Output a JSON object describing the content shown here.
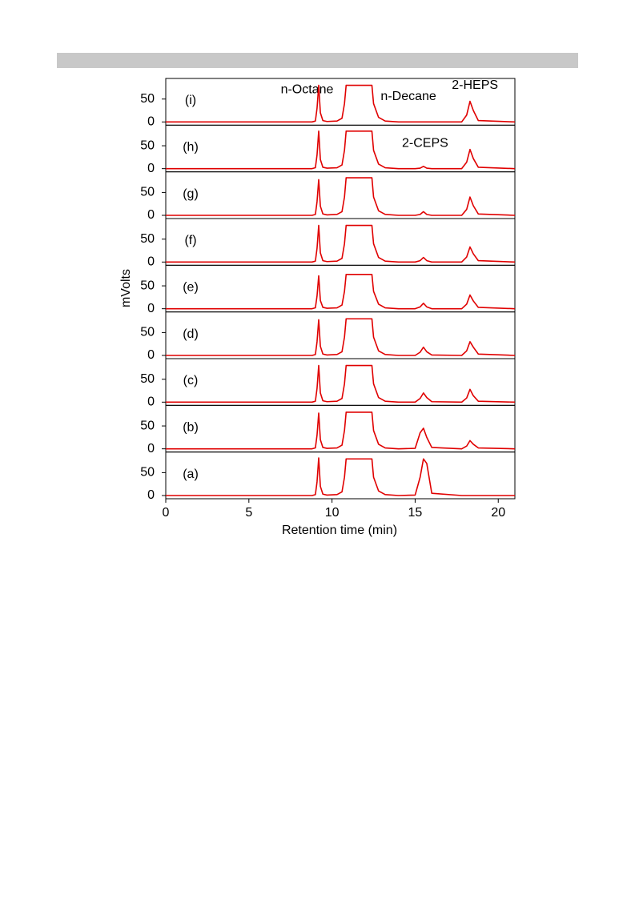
{
  "ylabel": "mVolts",
  "chart_data": [
    {
      "type": "line",
      "label": "(i)",
      "annotations": [
        "n-Octane",
        "n-Decane",
        "2-HEPS"
      ],
      "xlim": [
        0,
        21
      ],
      "ylim": [
        -7,
        95
      ],
      "yticks": [
        0,
        50
      ],
      "series": [
        {
          "color": "#e00000",
          "x": [
            0,
            8.8,
            9.0,
            9.1,
            9.2,
            9.3,
            9.45,
            9.7,
            10.3,
            10.6,
            10.75,
            10.85,
            12.4,
            12.5,
            12.8,
            13.2,
            14.0,
            15.0,
            15.3,
            15.5,
            15.7,
            16.0,
            17.8,
            18.1,
            18.3,
            18.5,
            18.8,
            21
          ],
          "values": [
            0,
            0,
            2,
            30,
            80,
            20,
            3,
            1,
            2,
            8,
            40,
            80,
            80,
            40,
            10,
            2,
            0,
            0,
            0,
            0,
            0,
            0,
            0,
            15,
            45,
            25,
            3,
            0
          ]
        }
      ]
    },
    {
      "type": "line",
      "label": "(h)",
      "annotations": [
        "2-CEPS"
      ],
      "xlim": [
        0,
        21
      ],
      "ylim": [
        -7,
        95
      ],
      "yticks": [
        0,
        50
      ],
      "series": [
        {
          "color": "#e00000",
          "x": [
            0,
            8.8,
            9.0,
            9.1,
            9.2,
            9.3,
            9.45,
            9.7,
            10.3,
            10.6,
            10.75,
            10.85,
            12.4,
            12.5,
            12.8,
            13.2,
            14.0,
            15.0,
            15.3,
            15.5,
            15.7,
            16.0,
            17.8,
            18.1,
            18.3,
            18.5,
            18.8,
            21
          ],
          "values": [
            0,
            0,
            2,
            30,
            82,
            20,
            3,
            1,
            2,
            8,
            40,
            82,
            82,
            40,
            10,
            2,
            0,
            0,
            1,
            5,
            1,
            0,
            0,
            14,
            42,
            22,
            3,
            0
          ]
        }
      ]
    },
    {
      "type": "line",
      "label": "(g)",
      "xlim": [
        0,
        21
      ],
      "ylim": [
        -7,
        95
      ],
      "yticks": [
        0,
        50
      ],
      "series": [
        {
          "color": "#e00000",
          "x": [
            0,
            8.8,
            9.0,
            9.1,
            9.2,
            9.3,
            9.45,
            9.7,
            10.3,
            10.6,
            10.75,
            10.85,
            12.4,
            12.5,
            12.8,
            13.2,
            14.0,
            15.0,
            15.3,
            15.5,
            15.7,
            16.0,
            17.8,
            18.1,
            18.3,
            18.5,
            18.8,
            21
          ],
          "values": [
            0,
            0,
            2,
            30,
            78,
            20,
            3,
            1,
            2,
            8,
            40,
            82,
            82,
            40,
            10,
            2,
            0,
            0,
            2,
            8,
            2,
            0,
            0,
            13,
            40,
            21,
            3,
            0
          ]
        }
      ]
    },
    {
      "type": "line",
      "label": "(f)",
      "xlim": [
        0,
        21
      ],
      "ylim": [
        -7,
        95
      ],
      "yticks": [
        0,
        50
      ],
      "series": [
        {
          "color": "#e00000",
          "x": [
            0,
            8.8,
            9.0,
            9.1,
            9.2,
            9.3,
            9.45,
            9.7,
            10.3,
            10.6,
            10.75,
            10.85,
            12.4,
            12.5,
            12.8,
            13.2,
            14.0,
            15.0,
            15.3,
            15.5,
            15.7,
            16.0,
            17.8,
            18.1,
            18.3,
            18.5,
            18.8,
            21
          ],
          "values": [
            0,
            0,
            2,
            30,
            80,
            20,
            3,
            1,
            2,
            8,
            40,
            80,
            80,
            40,
            10,
            2,
            0,
            0,
            3,
            10,
            3,
            0,
            0,
            11,
            33,
            18,
            3,
            0
          ]
        }
      ]
    },
    {
      "type": "line",
      "label": "(e)",
      "xlim": [
        0,
        21
      ],
      "ylim": [
        -7,
        95
      ],
      "yticks": [
        0,
        50
      ],
      "series": [
        {
          "color": "#e00000",
          "x": [
            0,
            8.8,
            9.0,
            9.1,
            9.2,
            9.3,
            9.45,
            9.7,
            10.3,
            10.6,
            10.75,
            10.85,
            12.4,
            12.5,
            12.8,
            13.2,
            14.0,
            15.0,
            15.3,
            15.5,
            15.7,
            16.0,
            17.8,
            18.1,
            18.3,
            18.5,
            18.8,
            21
          ],
          "values": [
            0,
            0,
            2,
            28,
            72,
            18,
            3,
            1,
            2,
            8,
            38,
            75,
            75,
            38,
            10,
            2,
            0,
            0,
            4,
            12,
            4,
            0,
            0,
            10,
            30,
            17,
            3,
            0
          ]
        }
      ]
    },
    {
      "type": "line",
      "label": "(d)",
      "xlim": [
        0,
        21
      ],
      "ylim": [
        -7,
        95
      ],
      "yticks": [
        0,
        50
      ],
      "series": [
        {
          "color": "#e00000",
          "x": [
            0,
            8.8,
            9.0,
            9.1,
            9.2,
            9.3,
            9.45,
            9.7,
            10.3,
            10.6,
            10.75,
            10.85,
            12.4,
            12.5,
            12.8,
            13.2,
            14.0,
            15.0,
            15.3,
            15.5,
            15.7,
            16.0,
            17.8,
            18.1,
            18.3,
            18.5,
            18.8,
            21
          ],
          "values": [
            0,
            0,
            2,
            30,
            78,
            20,
            3,
            1,
            2,
            8,
            40,
            80,
            80,
            40,
            10,
            2,
            0,
            0,
            7,
            18,
            8,
            1,
            0,
            10,
            30,
            18,
            3,
            0
          ]
        }
      ]
    },
    {
      "type": "line",
      "label": "(c)",
      "xlim": [
        0,
        21
      ],
      "ylim": [
        -7,
        95
      ],
      "yticks": [
        0,
        50
      ],
      "series": [
        {
          "color": "#e00000",
          "x": [
            0,
            8.8,
            9.0,
            9.1,
            9.2,
            9.3,
            9.45,
            9.7,
            10.3,
            10.6,
            10.75,
            10.85,
            12.4,
            12.5,
            12.8,
            13.2,
            14.0,
            15.0,
            15.3,
            15.5,
            15.7,
            16.0,
            17.8,
            18.1,
            18.3,
            18.5,
            18.8,
            21
          ],
          "values": [
            0,
            0,
            2,
            30,
            80,
            20,
            3,
            1,
            2,
            8,
            40,
            80,
            80,
            40,
            10,
            2,
            0,
            0,
            8,
            20,
            10,
            1,
            0,
            9,
            28,
            14,
            2,
            0
          ]
        }
      ]
    },
    {
      "type": "line",
      "label": "(b)",
      "xlim": [
        0,
        21
      ],
      "ylim": [
        -7,
        95
      ],
      "yticks": [
        0,
        50
      ],
      "series": [
        {
          "color": "#e00000",
          "x": [
            0,
            8.8,
            9.0,
            9.1,
            9.2,
            9.3,
            9.45,
            9.7,
            10.3,
            10.6,
            10.75,
            10.85,
            12.4,
            12.5,
            12.8,
            13.2,
            14.0,
            15.0,
            15.3,
            15.5,
            15.7,
            16.0,
            17.8,
            18.1,
            18.3,
            18.5,
            18.8,
            21
          ],
          "values": [
            0,
            0,
            2,
            30,
            78,
            20,
            3,
            1,
            2,
            8,
            40,
            80,
            80,
            40,
            10,
            2,
            0,
            1,
            35,
            45,
            25,
            3,
            0,
            6,
            18,
            10,
            2,
            0
          ]
        }
      ]
    },
    {
      "type": "line",
      "label": "(a)",
      "xlabel": "Retention time (min)",
      "xlim": [
        0,
        21
      ],
      "xticks": [
        0,
        5,
        10,
        15,
        20
      ],
      "ylim": [
        -7,
        95
      ],
      "yticks": [
        0,
        50
      ],
      "series": [
        {
          "color": "#e00000",
          "x": [
            0,
            8.8,
            9.0,
            9.1,
            9.2,
            9.3,
            9.45,
            9.7,
            10.3,
            10.6,
            10.75,
            10.85,
            12.4,
            12.5,
            12.8,
            13.2,
            14.0,
            15.0,
            15.3,
            15.5,
            15.7,
            16.0,
            17.8,
            18.1,
            18.3,
            18.5,
            18.8,
            21
          ],
          "values": [
            0,
            0,
            2,
            30,
            82,
            20,
            3,
            1,
            2,
            8,
            40,
            80,
            80,
            40,
            10,
            2,
            0,
            1,
            40,
            80,
            70,
            5,
            0,
            0,
            0,
            0,
            0,
            0
          ]
        }
      ]
    }
  ]
}
